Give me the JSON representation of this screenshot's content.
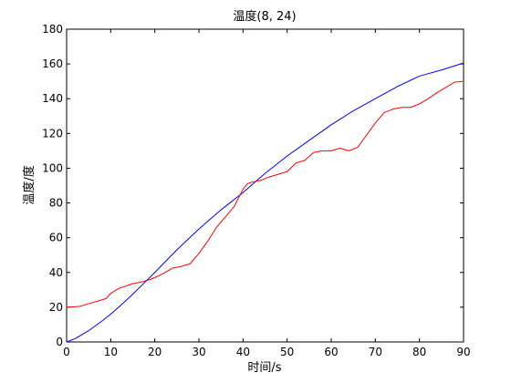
{
  "chart_data": {
    "type": "line",
    "title": "温度(8, 24)",
    "xlabel": "时间/s",
    "ylabel": "温度/度",
    "xlim": [
      0,
      90
    ],
    "ylim": [
      0,
      180
    ],
    "xticks": [
      0,
      10,
      20,
      30,
      40,
      50,
      60,
      70,
      80,
      90
    ],
    "yticks": [
      0,
      20,
      40,
      60,
      80,
      100,
      120,
      140,
      160,
      180
    ],
    "grid": false,
    "legend": "none",
    "series": [
      {
        "color": "#0000ff",
        "x": [
          0,
          2,
          5,
          8,
          10,
          12,
          15,
          18,
          20,
          25,
          30,
          35,
          40,
          45,
          50,
          55,
          60,
          65,
          70,
          75,
          80,
          85,
          90
        ],
        "y": [
          0,
          2,
          6.5,
          12,
          16,
          20.5,
          27.5,
          35,
          40,
          53,
          65,
          76,
          86,
          97,
          107,
          116,
          125,
          133,
          140,
          147,
          153,
          156.5,
          160.5
        ]
      },
      {
        "color": "#ff0000",
        "x": [
          0,
          3,
          5,
          7,
          9,
          10,
          12,
          15,
          17,
          19,
          20,
          22,
          24,
          26,
          28,
          30,
          32,
          34,
          36,
          38,
          40,
          41,
          42,
          44,
          46,
          48,
          50,
          52,
          54,
          56,
          58,
          60,
          62,
          64,
          66,
          68,
          70,
          72,
          74,
          76,
          78,
          80,
          82,
          84,
          86,
          88,
          90
        ],
        "y": [
          20,
          20.5,
          22,
          23.5,
          25,
          28,
          31,
          33.5,
          34.5,
          36,
          37,
          39.5,
          42.5,
          43.5,
          45,
          51,
          58,
          66,
          72,
          78,
          88,
          91,
          92,
          93,
          95,
          96.5,
          98,
          103,
          104.5,
          109,
          110,
          110,
          111.5,
          110,
          112,
          119,
          126,
          132,
          134,
          135,
          135,
          137,
          140,
          143.5,
          146.5,
          149.5,
          150
        ]
      }
    ]
  }
}
